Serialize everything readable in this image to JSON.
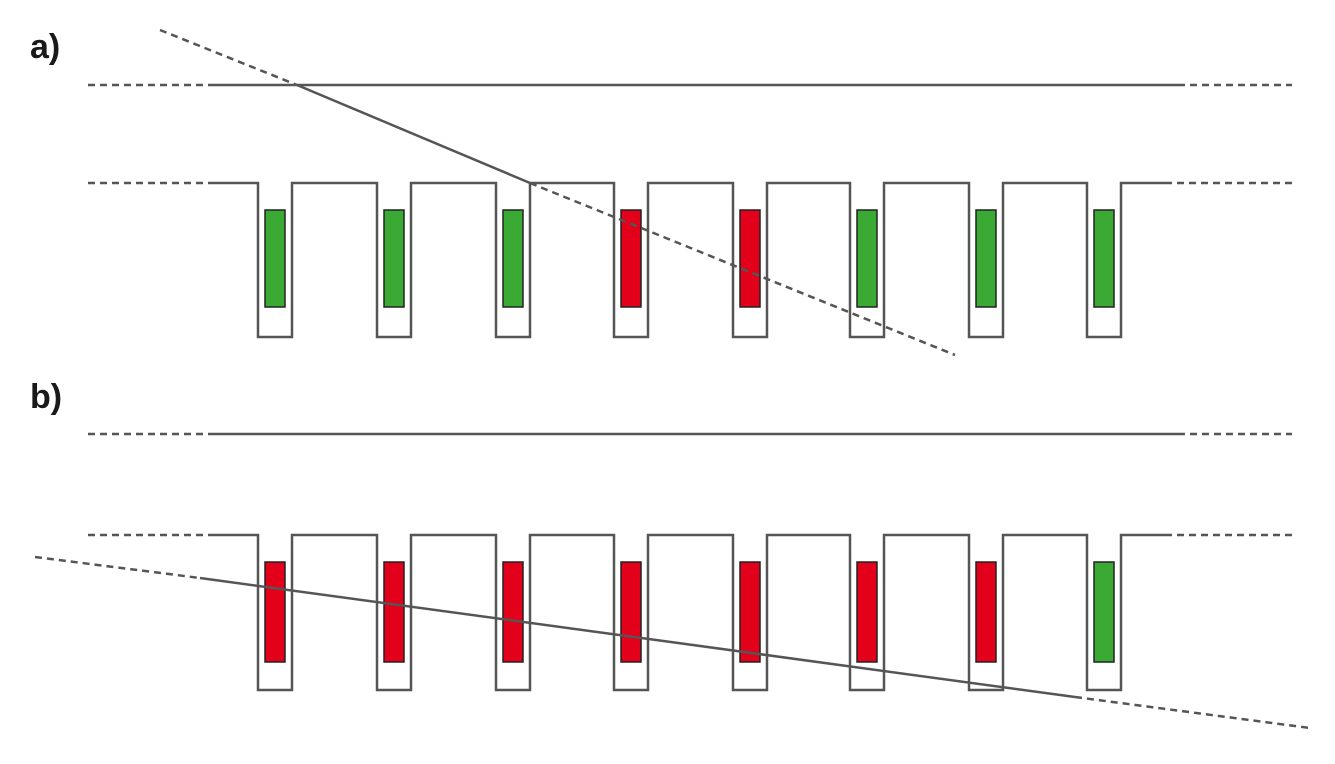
{
  "panels": [
    {
      "label": "a)",
      "cells": [
        "green",
        "green",
        "green",
        "red",
        "red",
        "green",
        "green",
        "green"
      ]
    },
    {
      "label": "b)",
      "cells": [
        "red",
        "red",
        "red",
        "red",
        "red",
        "red",
        "red",
        "green"
      ]
    }
  ],
  "colors": {
    "green": "#3aaa35",
    "red": "#e3001b",
    "line": "#555555"
  }
}
